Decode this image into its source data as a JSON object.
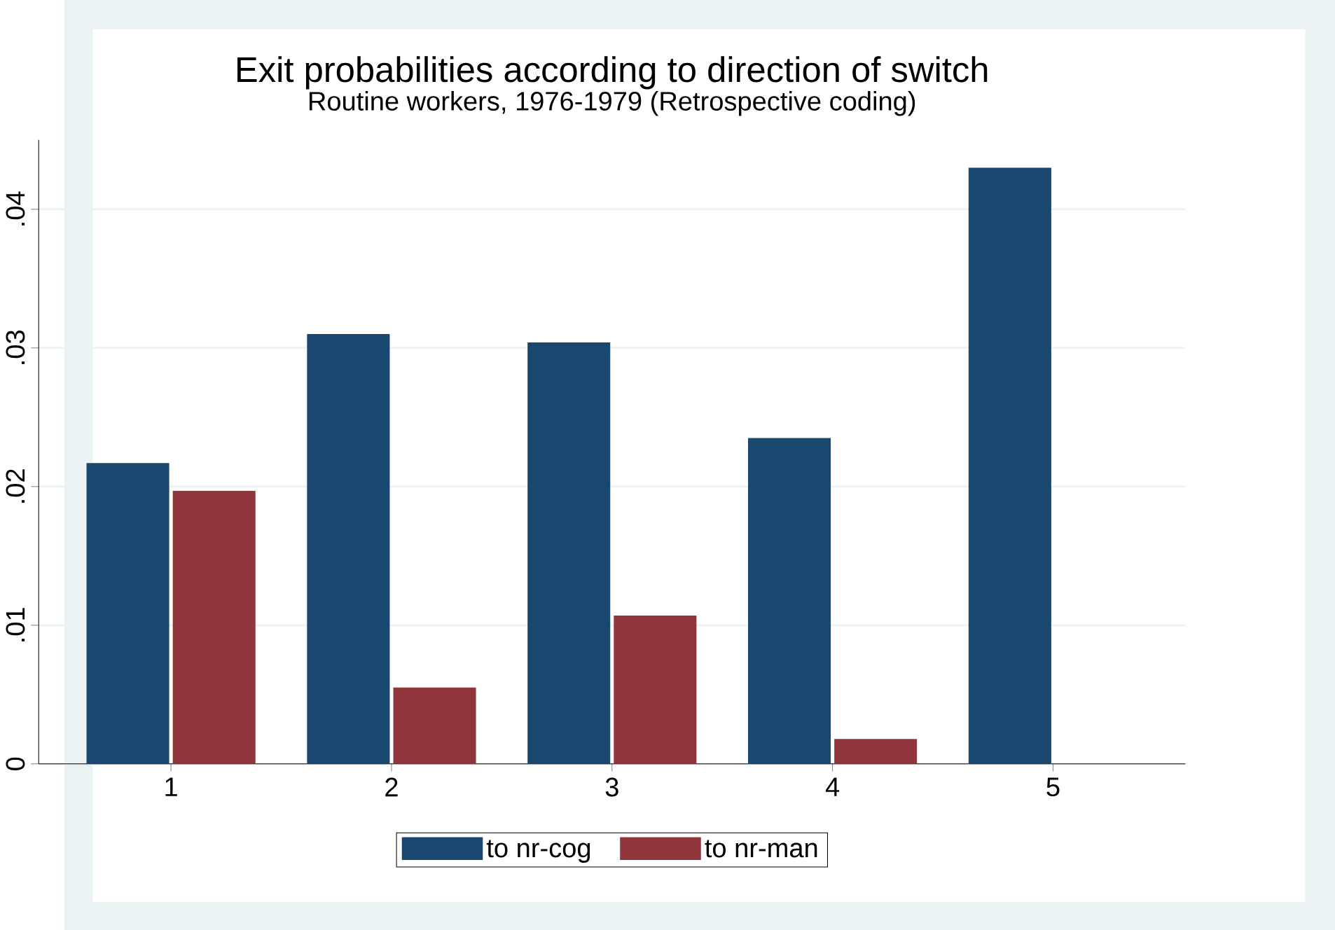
{
  "chart_data": {
    "type": "bar",
    "title": "Exit probabilities according to direction of switch",
    "subtitle": "Routine workers, 1976-1979 (Retrospective coding)",
    "categories": [
      "1",
      "2",
      "3",
      "4",
      "5"
    ],
    "series": [
      {
        "name": "to nr-cog",
        "color": "#1a476f",
        "values": [
          0.0217,
          0.031,
          0.0304,
          0.0235,
          0.043
        ]
      },
      {
        "name": "to nr-man",
        "color": "#90353b",
        "values": [
          0.0197,
          0.0055,
          0.0107,
          0.0018,
          null
        ]
      }
    ],
    "ylim": [
      0,
      0.045
    ],
    "yticks": [
      {
        "value": 0,
        "label": "0"
      },
      {
        "value": 0.01,
        "label": ".01"
      },
      {
        "value": 0.02,
        "label": ".02"
      },
      {
        "value": 0.03,
        "label": ".03"
      },
      {
        "value": 0.04,
        "label": ".04"
      }
    ],
    "grid": "y",
    "legend": "bottom"
  }
}
